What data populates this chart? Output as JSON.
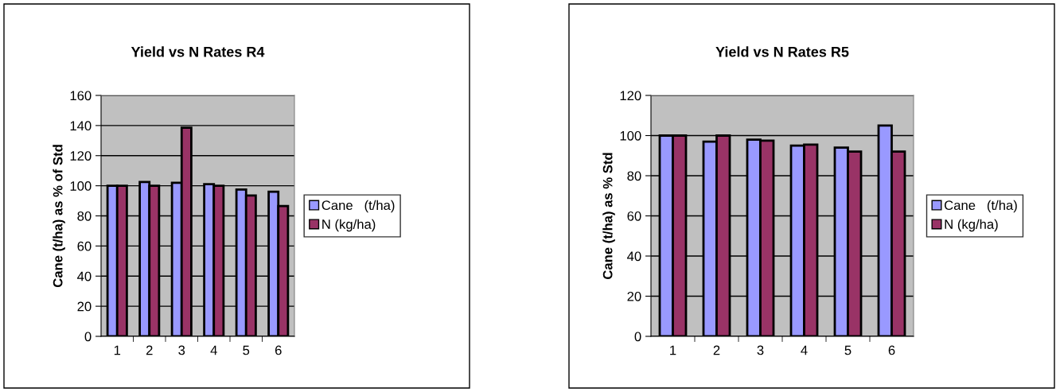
{
  "chart_data": [
    {
      "type": "bar",
      "title": "Yield vs N Rates R4",
      "ylabel": "Cane (t/ha) as % of Std",
      "categories": [
        "1",
        "2",
        "3",
        "4",
        "5",
        "6"
      ],
      "series": [
        {
          "name": "Cane   (t/ha)",
          "color": "#9999ff",
          "values": [
            100,
            102.5,
            102,
            101,
            97.5,
            96
          ]
        },
        {
          "name": "N (kg/ha)",
          "color": "#993366",
          "values": [
            100,
            100,
            138.5,
            100,
            93.5,
            86.5
          ]
        }
      ],
      "ylim": [
        0,
        160
      ],
      "yticks": [
        0,
        20,
        40,
        60,
        80,
        100,
        120,
        140,
        160
      ],
      "grid": "y",
      "legend": "right"
    },
    {
      "type": "bar",
      "title": "Yield vs N Rates R5",
      "ylabel": "Cane (t/ha) as % Std",
      "categories": [
        "1",
        "2",
        "3",
        "4",
        "5",
        "6"
      ],
      "series": [
        {
          "name": "Cane   (t/ha)",
          "color": "#9999ff",
          "values": [
            100,
            97,
            98,
            95,
            94,
            105
          ]
        },
        {
          "name": "N (kg/ha)",
          "color": "#993366",
          "values": [
            100,
            100,
            97.5,
            95.5,
            92,
            92
          ]
        }
      ],
      "ylim": [
        0,
        120
      ],
      "yticks": [
        0,
        20,
        40,
        60,
        80,
        100,
        120
      ],
      "grid": "y",
      "legend": "right"
    }
  ]
}
